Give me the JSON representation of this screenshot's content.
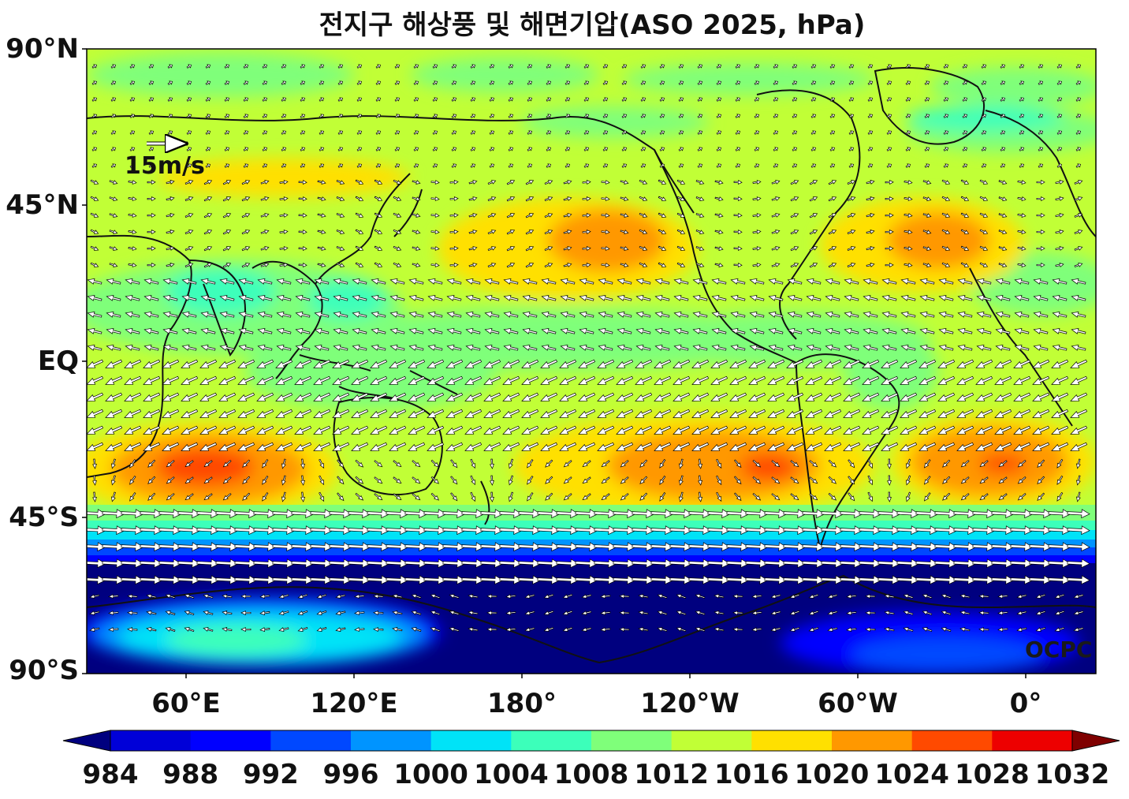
{
  "title": "전지구 해상풍 및 해면기압(ASO 2025, hPa)",
  "axes": {
    "lat_labels": [
      "90°N",
      "45°N",
      "EQ",
      "45°S",
      "90°S"
    ],
    "lon_labels": [
      "60°E",
      "120°E",
      "180°",
      "120°W",
      "60°W",
      "0°"
    ]
  },
  "reference_arrow": {
    "label": "15m/s"
  },
  "watermark": "OCPC",
  "colorbar": {
    "levels": [
      "984",
      "988",
      "992",
      "996",
      "1000",
      "1004",
      "1008",
      "1012",
      "1016",
      "1020",
      "1024",
      "1028",
      "1032"
    ],
    "colors": [
      "#00007f",
      "#0000d8",
      "#0000ff",
      "#0048ff",
      "#0094ff",
      "#00e3f7",
      "#3cffba",
      "#7fff7a",
      "#c1ff36",
      "#ffe000",
      "#ff9800",
      "#ff4a00",
      "#ed0000",
      "#7f0000"
    ]
  },
  "colors": {
    "land_outline": "#111111",
    "arrow_fill": "#ffffff",
    "arrow_stroke": "#000000"
  }
}
